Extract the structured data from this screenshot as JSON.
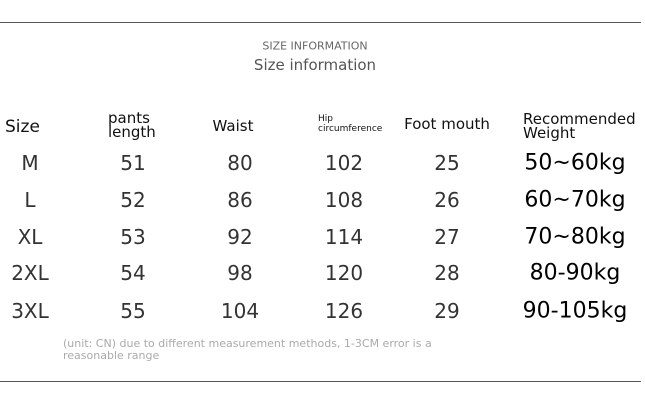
{
  "header": {
    "title": "SIZE INFORMATION",
    "subtitle": "Size information"
  },
  "table": {
    "columns": [
      "Size",
      "pants length",
      "Waist",
      "Hip circumference",
      "Foot mouth",
      "Recommended Weight"
    ],
    "rows": [
      [
        "M",
        51,
        80,
        102,
        25,
        "50~60kg"
      ],
      [
        "L",
        52,
        86,
        108,
        26,
        "60~70kg"
      ],
      [
        "XL",
        53,
        92,
        114,
        27,
        "70~80kg"
      ],
      [
        "2XL",
        54,
        98,
        120,
        28,
        "80-90kg"
      ],
      [
        "3XL",
        55,
        104,
        126,
        29,
        "90-105kg"
      ]
    ]
  },
  "note": "(unit: CN) due to different measurement methods, 1-3CM error is a reasonable range"
}
